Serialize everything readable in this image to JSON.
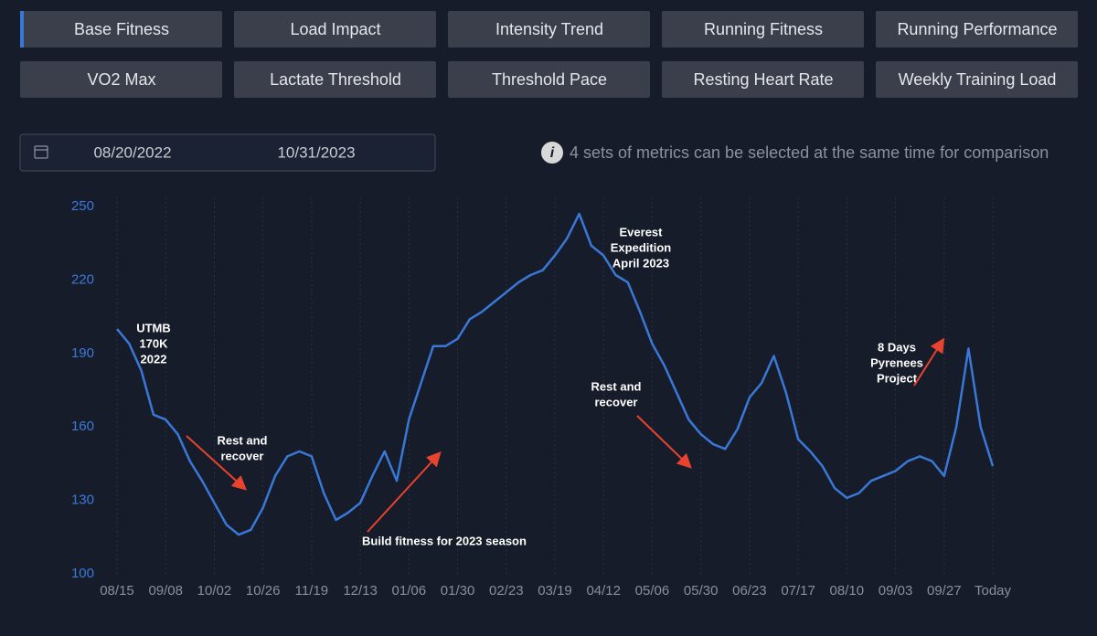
{
  "buttons": [
    "Base Fitness",
    "Load Impact",
    "Intensity Trend",
    "Running Fitness",
    "Running Performance",
    "VO2 Max",
    "Lactate Threshold",
    "Threshold Pace",
    "Resting Heart Rate",
    "Weekly Training Load"
  ],
  "date_range": {
    "start": "08/20/2022",
    "end": "10/31/2023"
  },
  "info": "4 sets of metrics can be selected at the same time for comparison",
  "chart_data": {
    "type": "line",
    "categories": [
      "08/15",
      null,
      null,
      null,
      "09/08",
      null,
      null,
      null,
      "10/02",
      null,
      null,
      null,
      "10/26",
      null,
      null,
      null,
      "11/19",
      null,
      null,
      null,
      "12/13",
      null,
      null,
      null,
      "01/06",
      null,
      null,
      null,
      "01/30",
      null,
      null,
      null,
      "02/23",
      null,
      null,
      null,
      "03/19",
      null,
      null,
      null,
      "04/12",
      null,
      null,
      null,
      "05/06",
      null,
      null,
      null,
      "05/30",
      null,
      null,
      null,
      "06/23",
      null,
      null,
      null,
      "07/17",
      null,
      null,
      null,
      "08/10",
      null,
      null,
      null,
      "09/03",
      null,
      null,
      null,
      "09/27",
      null,
      null,
      null,
      "Today"
    ],
    "series": [
      {
        "name": "Base Fitness",
        "color": "#3a78d8",
        "values": [
          200,
          194,
          183,
          165,
          163,
          157,
          146,
          138,
          129,
          120,
          116,
          118,
          127,
          140,
          148,
          150,
          148,
          133,
          122,
          125,
          129,
          140,
          150,
          138,
          163,
          178,
          193,
          193,
          196,
          204,
          207,
          211,
          215,
          219,
          222,
          224,
          230,
          237,
          247,
          234,
          230,
          222,
          219,
          207,
          194,
          185,
          174,
          163,
          157,
          153,
          151,
          159,
          172,
          178,
          189,
          174,
          155,
          150,
          144,
          135,
          131,
          133,
          138,
          140,
          142,
          146,
          148,
          146,
          140,
          160,
          192,
          160,
          144
        ]
      }
    ],
    "ylim": [
      100,
      250
    ],
    "yticks": [
      100,
      130,
      160,
      190,
      220,
      250
    ],
    "grid": true,
    "annotations": [
      [
        "UTMB",
        "170K",
        "2022"
      ],
      [
        "Rest and",
        "recover"
      ],
      [
        "Build fitness for 2023 season"
      ],
      [
        "Everest",
        "Expedition",
        "April 2023"
      ],
      [
        "Rest and",
        "recover"
      ],
      [
        "8 Days",
        "Pyrenees",
        "Project"
      ]
    ]
  }
}
